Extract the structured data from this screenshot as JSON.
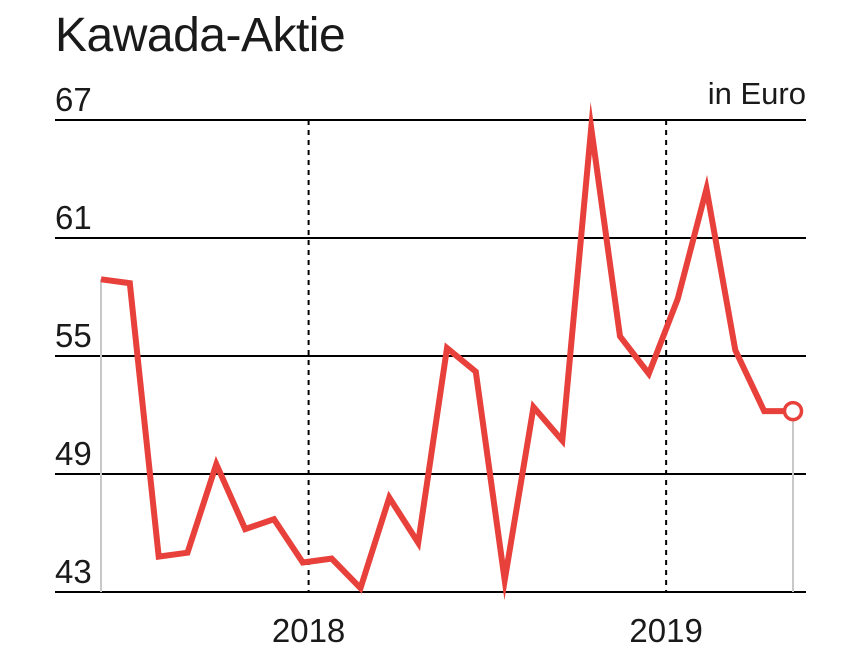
{
  "title": "Kawada-Aktie",
  "unit_label": "in Euro",
  "colors": {
    "line": "#e8403b",
    "grid": "#000000",
    "text": "#1a1a1a",
    "drop_line": "#c8c8c8"
  },
  "chart_data": {
    "type": "line",
    "title": "Kawada-Aktie",
    "ylabel": "in Euro",
    "ylim": [
      43,
      67
    ],
    "yticks": [
      67,
      61,
      55,
      49,
      43
    ],
    "ytick_labels": [
      "67",
      "61",
      "55",
      "49",
      "43"
    ],
    "xticks": [
      {
        "label": "2018",
        "x": 7.2
      },
      {
        "label": "2019",
        "x": 19.6
      }
    ],
    "xlim": [
      0,
      24.2
    ],
    "grid": "horizontal",
    "series": [
      {
        "values": [
          {
            "x": 0.0,
            "y": 58.9
          },
          {
            "x": 1.0,
            "y": 58.7
          },
          {
            "x": 2.0,
            "y": 44.8
          },
          {
            "x": 3.0,
            "y": 45.0
          },
          {
            "x": 4.0,
            "y": 49.5
          },
          {
            "x": 5.0,
            "y": 46.2
          },
          {
            "x": 6.0,
            "y": 46.7
          },
          {
            "x": 7.0,
            "y": 44.5
          },
          {
            "x": 8.0,
            "y": 44.7
          },
          {
            "x": 9.0,
            "y": 43.2
          },
          {
            "x": 10.0,
            "y": 47.8
          },
          {
            "x": 11.0,
            "y": 45.5
          },
          {
            "x": 12.0,
            "y": 55.4
          },
          {
            "x": 13.0,
            "y": 54.2
          },
          {
            "x": 14.0,
            "y": 43.6
          },
          {
            "x": 15.0,
            "y": 52.4
          },
          {
            "x": 16.0,
            "y": 50.7
          },
          {
            "x": 17.0,
            "y": 66.6
          },
          {
            "x": 18.0,
            "y": 56.0
          },
          {
            "x": 19.0,
            "y": 54.1
          },
          {
            "x": 20.0,
            "y": 57.9
          },
          {
            "x": 21.0,
            "y": 63.5
          },
          {
            "x": 22.0,
            "y": 55.3
          },
          {
            "x": 23.0,
            "y": 52.2
          },
          {
            "x": 24.0,
            "y": 52.2
          }
        ]
      }
    ],
    "marker_last": "open-circle"
  }
}
